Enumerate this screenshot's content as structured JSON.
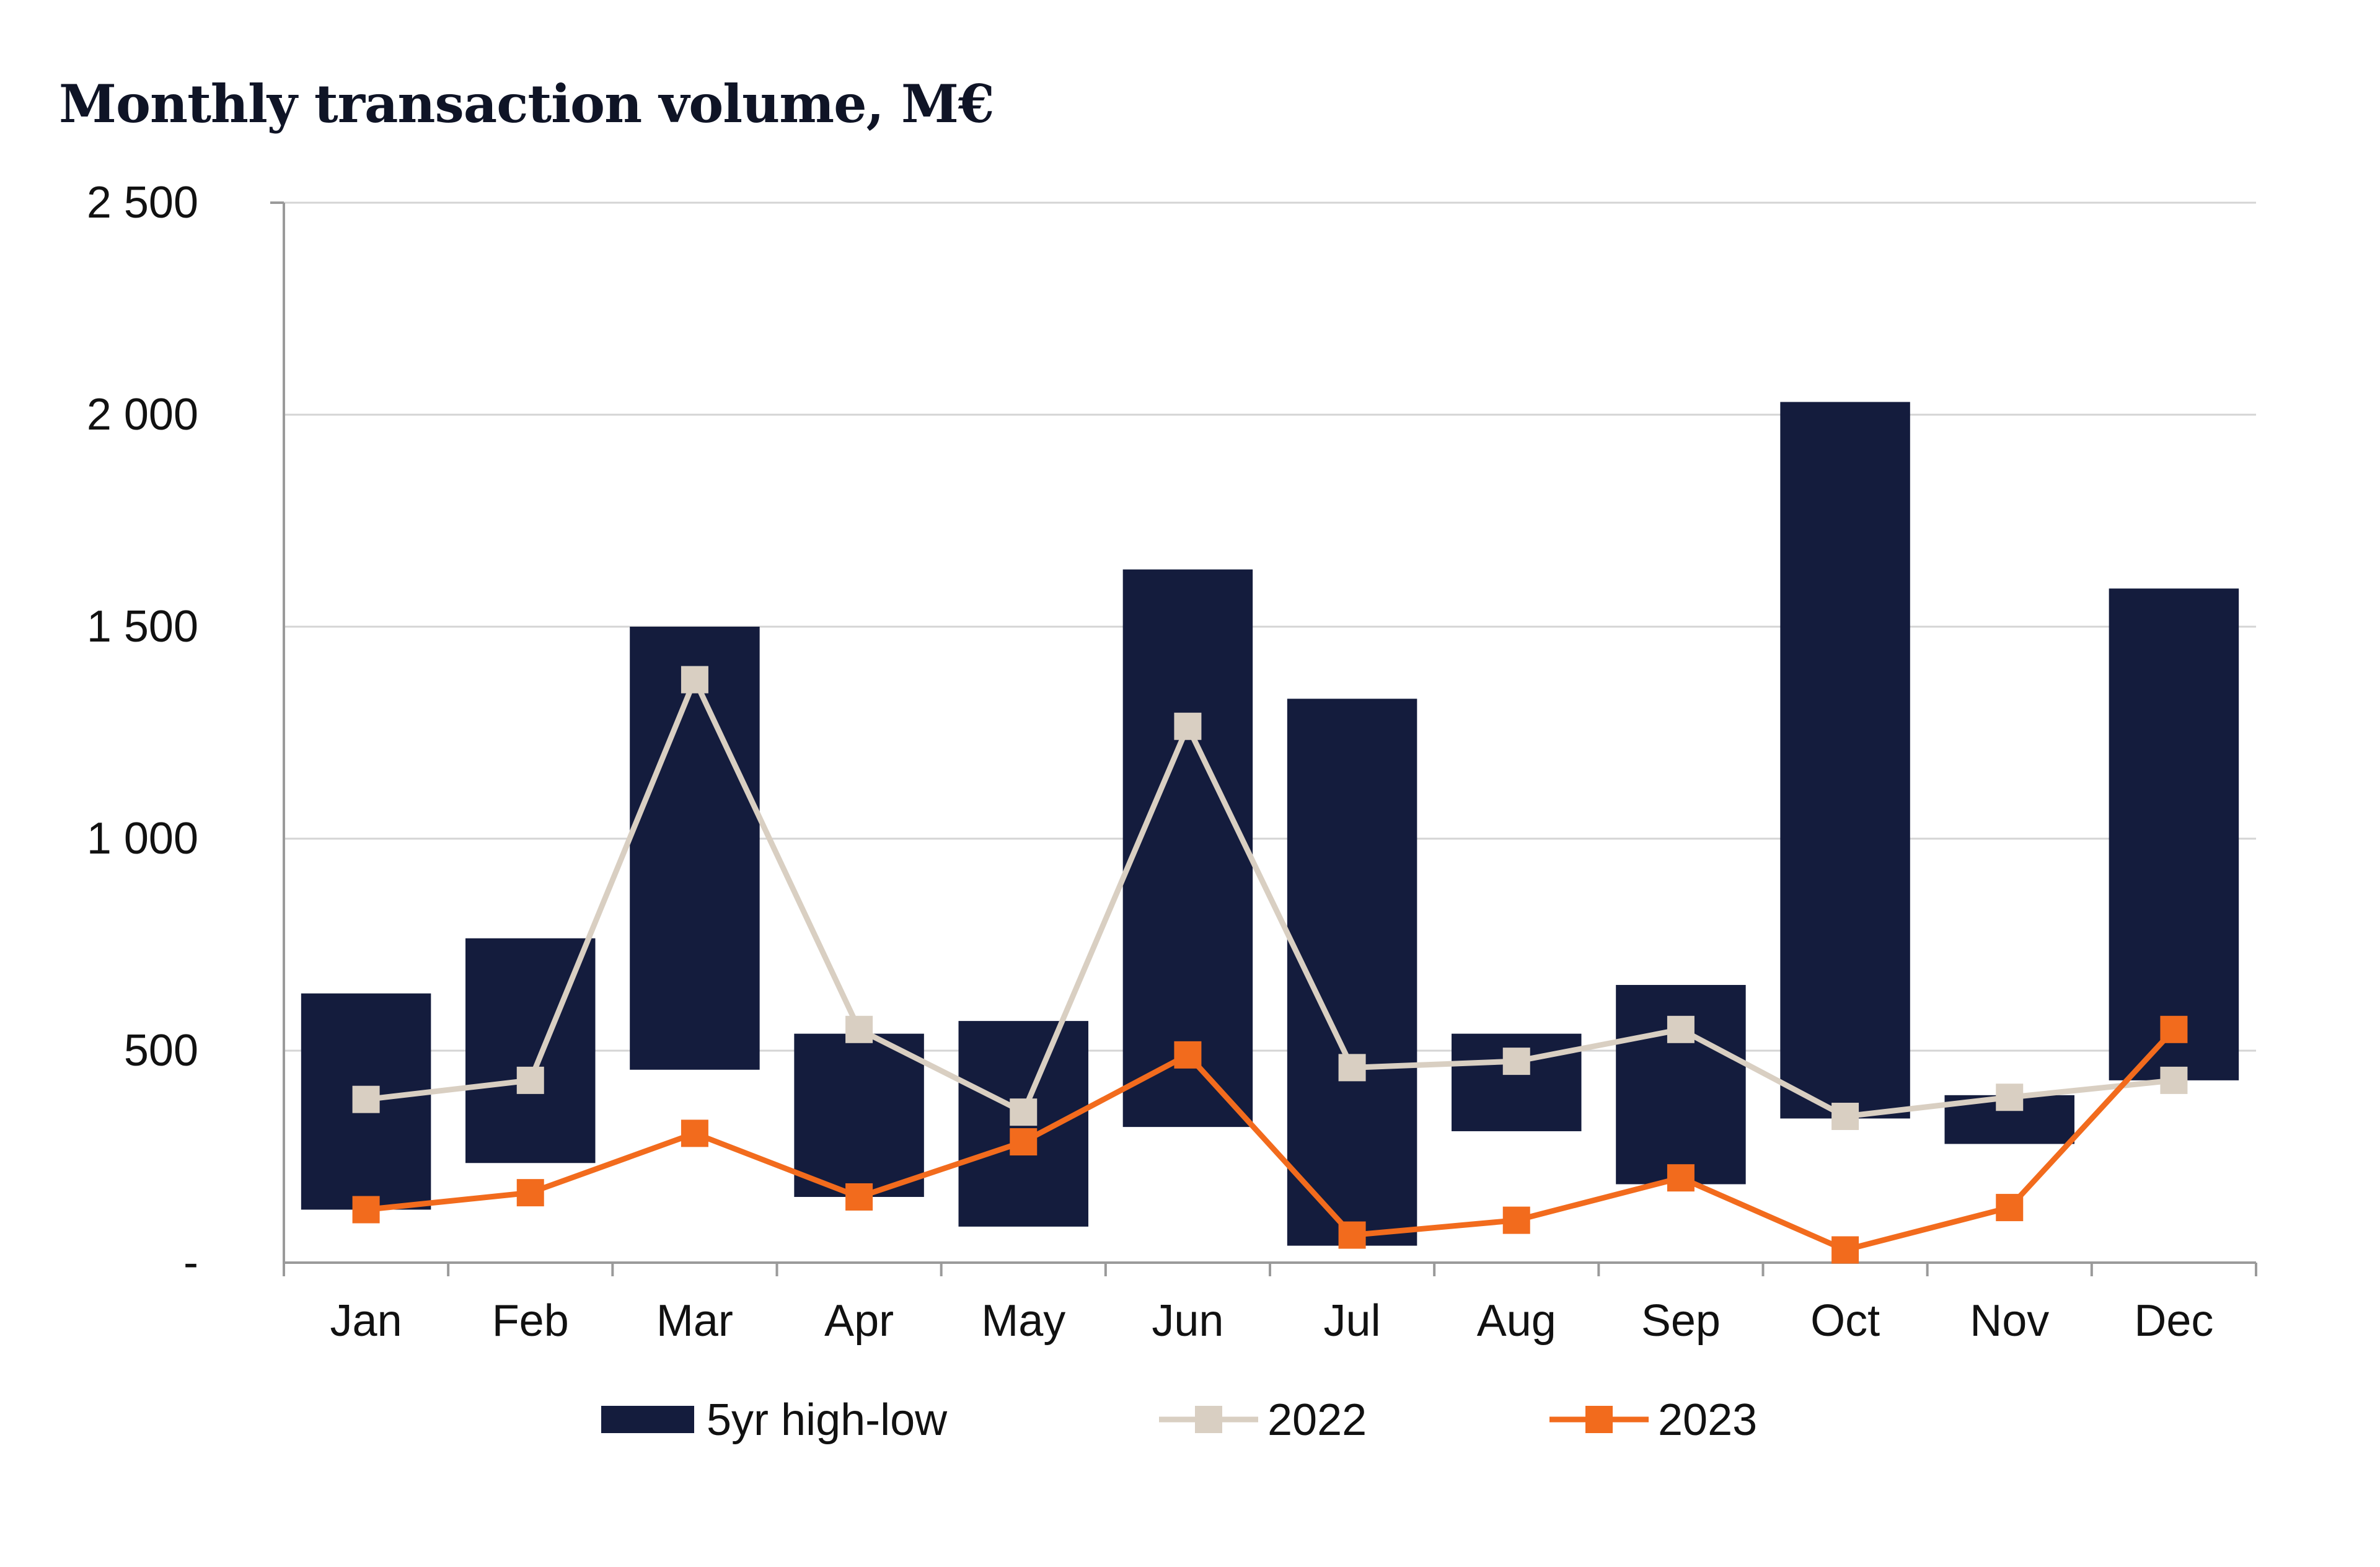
{
  "title": "Monthly transaction volume, M€",
  "chart_data": {
    "type": "bar",
    "title": "Monthly transaction volume, M€",
    "xlabel": "",
    "ylabel": "",
    "ylim": [
      0,
      2500
    ],
    "yticks": [
      {
        "value": 0,
        "label": "-"
      },
      {
        "value": 500,
        "label": "500"
      },
      {
        "value": 1000,
        "label": "1 000"
      },
      {
        "value": 1500,
        "label": "1 500"
      },
      {
        "value": 2000,
        "label": "2 000"
      },
      {
        "value": 2500,
        "label": "2 500"
      }
    ],
    "grid": true,
    "categories": [
      "Jan",
      "Feb",
      "Mar",
      "Apr",
      "May",
      "Jun",
      "Jul",
      "Aug",
      "Sep",
      "Oct",
      "Nov",
      "Dec"
    ],
    "range_series": {
      "name": "5yr high-low",
      "color": "#141c3d",
      "low": [
        125,
        235,
        455,
        155,
        85,
        320,
        40,
        310,
        185,
        340,
        280,
        430
      ],
      "high": [
        635,
        765,
        1500,
        540,
        570,
        1635,
        1330,
        540,
        655,
        2030,
        395,
        1590
      ]
    },
    "series": [
      {
        "name": "2022",
        "type": "line",
        "color": "#d9cfc2",
        "values": [
          385,
          430,
          1375,
          550,
          355,
          1265,
          460,
          475,
          550,
          345,
          390,
          430
        ]
      },
      {
        "name": "2023",
        "type": "line",
        "color": "#f26b1d",
        "values": [
          125,
          165,
          305,
          155,
          285,
          490,
          65,
          100,
          200,
          30,
          130,
          550
        ]
      }
    ],
    "legend": {
      "position": "bottom",
      "items": [
        {
          "label": "5yr high-low",
          "kind": "bar",
          "color": "#141c3d"
        },
        {
          "label": "2022",
          "kind": "line",
          "color": "#d9cfc2"
        },
        {
          "label": "2023",
          "kind": "line",
          "color": "#f26b1d"
        }
      ]
    }
  }
}
